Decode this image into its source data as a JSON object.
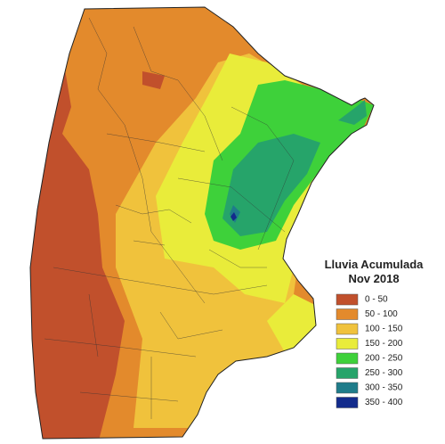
{
  "legend": {
    "title": [
      "Lluvia Acumulada",
      "Nov 2018"
    ],
    "items": [
      {
        "label": "0 - 50",
        "color": "#c1502c"
      },
      {
        "label": "50 - 100",
        "color": "#e38a2c"
      },
      {
        "label": "100 - 150",
        "color": "#f0c23c"
      },
      {
        "label": "150 - 200",
        "color": "#e9ec3a"
      },
      {
        "label": "200 - 250",
        "color": "#3ed13a"
      },
      {
        "label": "250 - 300",
        "color": "#26a46a"
      },
      {
        "label": "300 - 350",
        "color": "#1f7c8a"
      },
      {
        "label": "350 - 400",
        "color": "#132b8c"
      }
    ]
  }
}
